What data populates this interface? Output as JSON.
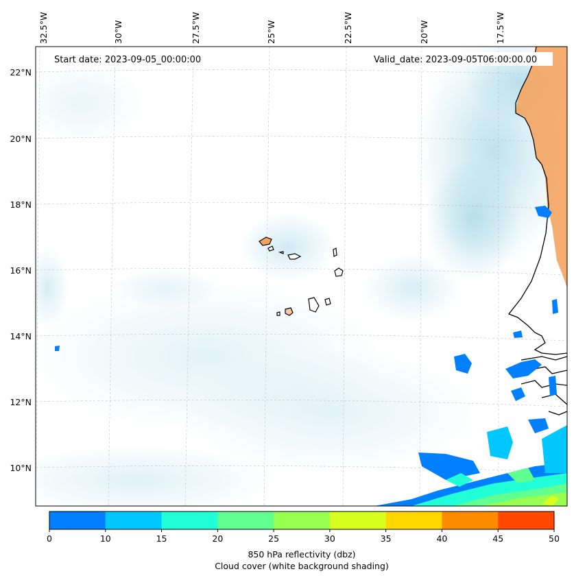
{
  "map": {
    "start_date": "Start date: 2023-09-05_00:00:00",
    "valid_date": "Valid_date: 2023-09-05T06:00:00.00",
    "lon_labels": [
      "32.5°W",
      "30°W",
      "27.5°W",
      "25°W",
      "22.5°W",
      "20°W",
      "17.5°W"
    ],
    "lat_labels": [
      "22°N",
      "20°N",
      "18°N",
      "16°N",
      "14°N",
      "12°N",
      "10°N"
    ],
    "colors": {
      "land": "#f4a460",
      "coast": "#000000",
      "cloud": "#a8d8e8",
      "grid": "#b0b0b0"
    }
  },
  "colorbar": {
    "ticks": [
      "0",
      "10",
      "15",
      "20",
      "25",
      "30",
      "35",
      "40",
      "45",
      "50"
    ],
    "colors": [
      "#0080ff",
      "#00c8ff",
      "#20ffd8",
      "#60ff90",
      "#98ff50",
      "#d8ff20",
      "#ffd800",
      "#ff8c00",
      "#ff4800"
    ],
    "label_line1": "850 hPa reflectivity (dbz)",
    "label_line2": "Cloud cover (white background shading)"
  }
}
